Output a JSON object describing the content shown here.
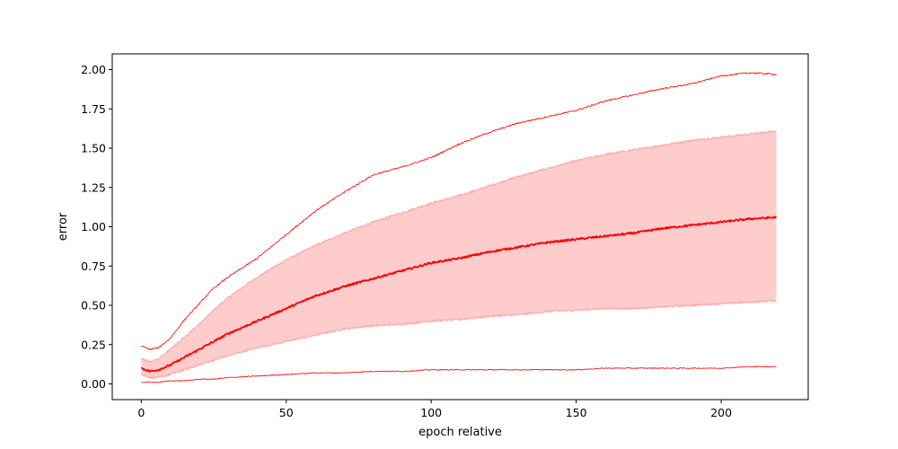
{
  "chart_data": {
    "type": "line",
    "title": "",
    "xlabel": "epoch relative",
    "ylabel": "error",
    "xlim": [
      -10,
      230
    ],
    "ylim": [
      -0.1,
      2.1
    ],
    "xticks": [
      0,
      50,
      100,
      150,
      200
    ],
    "xtick_labels": [
      "0",
      "50",
      "100",
      "150",
      "200"
    ],
    "yticks": [
      0.0,
      0.25,
      0.5,
      0.75,
      1.0,
      1.25,
      1.5,
      1.75,
      2.0
    ],
    "ytick_labels": [
      "0.00",
      "0.25",
      "0.50",
      "0.75",
      "1.00",
      "1.25",
      "1.50",
      "1.75",
      "2.00"
    ],
    "grid": false,
    "legend": "none",
    "colors": {
      "line": "#ff0000",
      "band_fill": "#ffcccc",
      "band_edge": "#ffaaaa"
    },
    "x": [
      0,
      3,
      6,
      10,
      15,
      20,
      25,
      30,
      40,
      50,
      60,
      70,
      80,
      90,
      100,
      110,
      120,
      130,
      140,
      150,
      160,
      170,
      180,
      190,
      200,
      210,
      219
    ],
    "series": [
      {
        "role": "mean",
        "values": [
          0.1,
          0.08,
          0.09,
          0.12,
          0.17,
          0.22,
          0.27,
          0.32,
          0.4,
          0.48,
          0.56,
          0.62,
          0.67,
          0.72,
          0.77,
          0.8,
          0.84,
          0.87,
          0.9,
          0.92,
          0.94,
          0.96,
          0.99,
          1.01,
          1.03,
          1.05,
          1.06
        ]
      },
      {
        "role": "band_upper",
        "values": [
          0.16,
          0.14,
          0.16,
          0.22,
          0.3,
          0.38,
          0.47,
          0.55,
          0.68,
          0.79,
          0.88,
          0.96,
          1.03,
          1.09,
          1.15,
          1.2,
          1.26,
          1.32,
          1.37,
          1.42,
          1.46,
          1.49,
          1.52,
          1.55,
          1.57,
          1.59,
          1.61
        ]
      },
      {
        "role": "band_lower",
        "values": [
          0.06,
          0.04,
          0.04,
          0.06,
          0.09,
          0.12,
          0.15,
          0.18,
          0.23,
          0.27,
          0.31,
          0.35,
          0.37,
          0.38,
          0.4,
          0.41,
          0.43,
          0.44,
          0.46,
          0.47,
          0.48,
          0.48,
          0.49,
          0.5,
          0.51,
          0.52,
          0.53
        ]
      },
      {
        "role": "max",
        "values": [
          0.24,
          0.22,
          0.23,
          0.29,
          0.41,
          0.51,
          0.61,
          0.68,
          0.8,
          0.95,
          1.1,
          1.22,
          1.33,
          1.38,
          1.44,
          1.53,
          1.6,
          1.66,
          1.7,
          1.74,
          1.8,
          1.84,
          1.88,
          1.91,
          1.96,
          1.98,
          1.97
        ]
      },
      {
        "role": "min",
        "values": [
          0.01,
          0.01,
          0.01,
          0.02,
          0.02,
          0.03,
          0.03,
          0.04,
          0.05,
          0.06,
          0.07,
          0.07,
          0.08,
          0.08,
          0.09,
          0.09,
          0.09,
          0.09,
          0.09,
          0.09,
          0.1,
          0.1,
          0.1,
          0.1,
          0.1,
          0.11,
          0.11
        ]
      }
    ]
  }
}
